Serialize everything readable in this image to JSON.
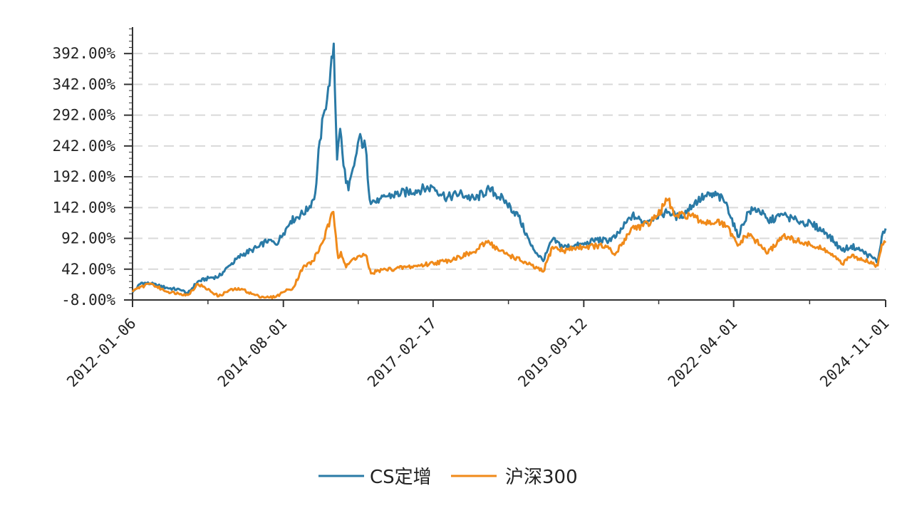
{
  "chart_data": {
    "type": "line",
    "title": "",
    "xlabel": "",
    "ylabel": "",
    "ylim": [
      -8,
      435
    ],
    "grid": "horizontal-dashed",
    "legend_placement": "bottom-center",
    "y_ticks": [
      -8,
      42,
      92,
      142,
      192,
      242,
      292,
      342,
      392
    ],
    "y_tick_labels": [
      "-8.00%",
      "42.00%",
      "92.00%",
      "142.00%",
      "192.00%",
      "242.00%",
      "292.00%",
      "342.00%",
      "392.00%"
    ],
    "x_ticks": [
      "2012-01-06",
      "2014-08-01",
      "2017-02-17",
      "2019-09-12",
      "2022-04-01",
      "2024-11-01"
    ],
    "x_range": [
      "2012-01-06",
      "2024-11-01"
    ],
    "series": [
      {
        "name": "CS定增",
        "color": "#2a7aa6",
        "points": [
          [
            "2012-01-06",
            4
          ],
          [
            "2012-03-01",
            20
          ],
          [
            "2012-05-01",
            18
          ],
          [
            "2012-08-01",
            12
          ],
          [
            "2012-11-01",
            8
          ],
          [
            "2012-12-15",
            3
          ],
          [
            "2013-02-15",
            22
          ],
          [
            "2013-05-01",
            28
          ],
          [
            "2013-06-25",
            30
          ],
          [
            "2013-09-01",
            48
          ],
          [
            "2013-11-15",
            65
          ],
          [
            "2014-01-15",
            73
          ],
          [
            "2014-03-01",
            78
          ],
          [
            "2014-05-01",
            90
          ],
          [
            "2014-06-15",
            82
          ],
          [
            "2014-08-01",
            100
          ],
          [
            "2014-09-15",
            120
          ],
          [
            "2014-11-15",
            130
          ],
          [
            "2015-01-05",
            140
          ],
          [
            "2015-02-15",
            165
          ],
          [
            "2015-03-15",
            250
          ],
          [
            "2015-04-15",
            300
          ],
          [
            "2015-05-15",
            340
          ],
          [
            "2015-06-10",
            408
          ],
          [
            "2015-07-01",
            220
          ],
          [
            "2015-07-20",
            270
          ],
          [
            "2015-08-10",
            210
          ],
          [
            "2015-09-10",
            170
          ],
          [
            "2015-10-15",
            210
          ],
          [
            "2015-11-15",
            255
          ],
          [
            "2015-12-25",
            240
          ],
          [
            "2016-01-20",
            155
          ],
          [
            "2016-03-15",
            150
          ],
          [
            "2016-05-01",
            160
          ],
          [
            "2016-08-01",
            165
          ],
          [
            "2016-11-01",
            170
          ],
          [
            "2017-02-17",
            175
          ],
          [
            "2017-05-15",
            158
          ],
          [
            "2017-08-01",
            165
          ],
          [
            "2017-11-01",
            155
          ],
          [
            "2018-02-01",
            172
          ],
          [
            "2018-05-01",
            155
          ],
          [
            "2018-08-01",
            128
          ],
          [
            "2018-10-20",
            80
          ],
          [
            "2019-01-03",
            55
          ],
          [
            "2019-03-01",
            90
          ],
          [
            "2019-05-10",
            78
          ],
          [
            "2019-07-15",
            80
          ],
          [
            "2019-09-12",
            82
          ],
          [
            "2019-12-01",
            90
          ],
          [
            "2020-02-01",
            88
          ],
          [
            "2020-04-01",
            95
          ],
          [
            "2020-07-10",
            130
          ],
          [
            "2020-09-15",
            118
          ],
          [
            "2020-12-01",
            128
          ],
          [
            "2021-02-18",
            135
          ],
          [
            "2021-05-01",
            125
          ],
          [
            "2021-08-01",
            150
          ],
          [
            "2021-10-01",
            160
          ],
          [
            "2021-12-15",
            162
          ],
          [
            "2022-02-15",
            150
          ],
          [
            "2022-04-26",
            95
          ],
          [
            "2022-07-01",
            135
          ],
          [
            "2022-09-01",
            140
          ],
          [
            "2022-11-01",
            120
          ],
          [
            "2023-02-01",
            130
          ],
          [
            "2023-05-01",
            120
          ],
          [
            "2023-08-01",
            115
          ],
          [
            "2023-11-01",
            100
          ],
          [
            "2024-02-05",
            72
          ],
          [
            "2024-04-01",
            80
          ],
          [
            "2024-06-01",
            72
          ],
          [
            "2024-09-13",
            55
          ],
          [
            "2024-10-08",
            95
          ],
          [
            "2024-11-01",
            108
          ]
        ]
      },
      {
        "name": "沪深300",
        "color": "#f08a1a",
        "points": [
          [
            "2012-01-06",
            5
          ],
          [
            "2012-03-01",
            14
          ],
          [
            "2012-05-01",
            18
          ],
          [
            "2012-08-01",
            6
          ],
          [
            "2012-11-01",
            2
          ],
          [
            "2012-12-15",
            0
          ],
          [
            "2013-02-15",
            18
          ],
          [
            "2013-04-01",
            12
          ],
          [
            "2013-06-25",
            -2
          ],
          [
            "2013-09-01",
            8
          ],
          [
            "2013-11-15",
            10
          ],
          [
            "2014-01-15",
            2
          ],
          [
            "2014-03-01",
            -2
          ],
          [
            "2014-05-01",
            -4
          ],
          [
            "2014-06-15",
            -3
          ],
          [
            "2014-08-01",
            5
          ],
          [
            "2014-10-01",
            12
          ],
          [
            "2014-12-01",
            45
          ],
          [
            "2015-02-01",
            55
          ],
          [
            "2015-04-01",
            85
          ],
          [
            "2015-06-08",
            135
          ],
          [
            "2015-07-08",
            60
          ],
          [
            "2015-07-25",
            70
          ],
          [
            "2015-08-26",
            45
          ],
          [
            "2015-10-15",
            60
          ],
          [
            "2015-12-25",
            65
          ],
          [
            "2016-01-28",
            35
          ],
          [
            "2016-03-15",
            40
          ],
          [
            "2016-06-01",
            42
          ],
          [
            "2016-09-01",
            45
          ],
          [
            "2016-12-01",
            48
          ],
          [
            "2017-02-17",
            52
          ],
          [
            "2017-05-01",
            55
          ],
          [
            "2017-08-01",
            62
          ],
          [
            "2017-11-01",
            70
          ],
          [
            "2018-01-26",
            88
          ],
          [
            "2018-04-01",
            72
          ],
          [
            "2018-07-01",
            62
          ],
          [
            "2018-10-01",
            50
          ],
          [
            "2019-01-03",
            38
          ],
          [
            "2019-03-01",
            78
          ],
          [
            "2019-05-10",
            72
          ],
          [
            "2019-07-15",
            76
          ],
          [
            "2019-09-12",
            78
          ],
          [
            "2019-12-01",
            80
          ],
          [
            "2020-02-01",
            78
          ],
          [
            "2020-03-23",
            65
          ],
          [
            "2020-07-10",
            110
          ],
          [
            "2020-09-15",
            112
          ],
          [
            "2020-12-01",
            125
          ],
          [
            "2021-02-18",
            155
          ],
          [
            "2021-04-01",
            128
          ],
          [
            "2021-07-01",
            130
          ],
          [
            "2021-09-01",
            120
          ],
          [
            "2021-12-15",
            118
          ],
          [
            "2022-02-15",
            112
          ],
          [
            "2022-04-26",
            80
          ],
          [
            "2022-07-01",
            100
          ],
          [
            "2022-10-31",
            68
          ],
          [
            "2023-01-27",
            95
          ],
          [
            "2023-05-01",
            88
          ],
          [
            "2023-08-01",
            80
          ],
          [
            "2023-11-01",
            72
          ],
          [
            "2024-02-05",
            50
          ],
          [
            "2024-04-01",
            62
          ],
          [
            "2024-06-01",
            60
          ],
          [
            "2024-09-13",
            48
          ],
          [
            "2024-10-08",
            82
          ],
          [
            "2024-11-01",
            85
          ]
        ]
      }
    ]
  }
}
